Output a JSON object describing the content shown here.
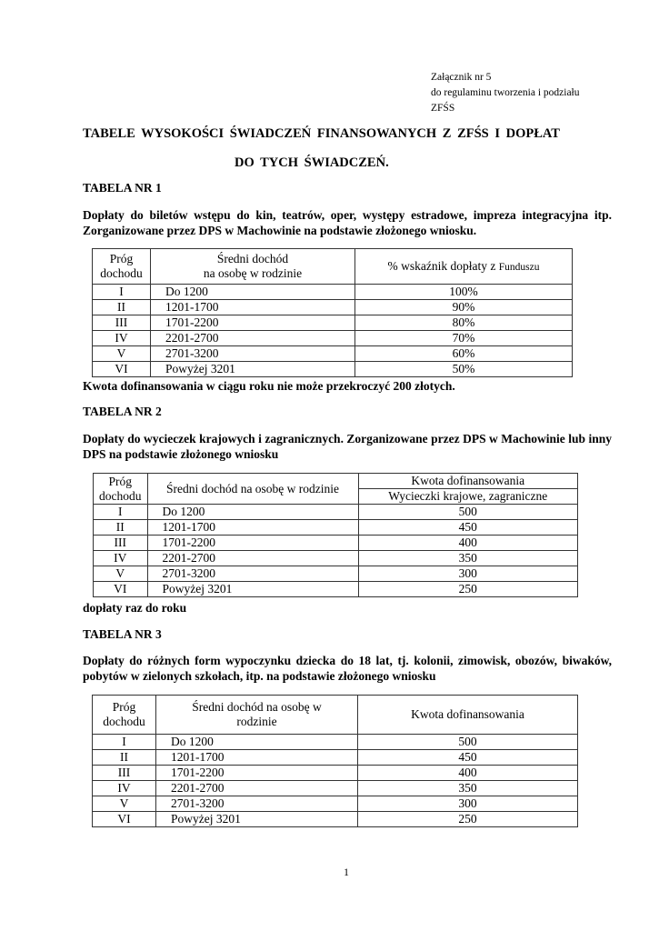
{
  "annex": [
    "Załącznik  nr 5",
    "do regulaminu tworzenia i podziału",
    "ZFŚS"
  ],
  "title": [
    "TABELE  WYSOKOŚCI  ŚWIADCZEŃ  FINANSOWANYCH  Z  ZFŚS  I  DOPŁAT",
    "DO TYCH ŚWIADCZEŃ."
  ],
  "table1": {
    "heading": "TABELA NR 1",
    "description": "Dopłaty do biletów wstępu do kin, teatrów, oper, występy estradowe, impreza integracyjna itp. Zorganizowane przez DPS w Machowinie na podstawie złożonego wniosku.",
    "headers": {
      "col1a": "Próg",
      "col1b": "dochodu",
      "col2a": "Średni dochód",
      "col2b": "na osobę w rodzinie",
      "col3a": "% wskaźnik dopłaty z ",
      "col3b": "Funduszu"
    },
    "rows": [
      [
        "I",
        "Do 1200",
        "100%"
      ],
      [
        "II",
        "1201-1700",
        "90%"
      ],
      [
        "III",
        "1701-2200",
        "80%"
      ],
      [
        "IV",
        "2201-2700",
        "70%"
      ],
      [
        "V",
        "2701-3200",
        "60%"
      ],
      [
        "VI",
        "Powyżej 3201",
        "50%"
      ]
    ],
    "note": "Kwota dofinansowania w ciągu roku nie może przekroczyć 200 złotych."
  },
  "table2": {
    "heading": "TABELA NR 2",
    "description": "Dopłaty do wycieczek krajowych i zagranicznych. Zorganizowane przez  DPS  w Machowinie lub inny DPS na podstawie złożonego wniosku",
    "headers": {
      "col1a": "Próg",
      "col1b": "dochodu",
      "col2": "Średni dochód na osobę w rodzinie",
      "col3a": "Kwota dofinansowania",
      "col3b": "Wycieczki krajowe, zagraniczne"
    },
    "rows": [
      [
        "I",
        "Do 1200",
        "500"
      ],
      [
        "II",
        "1201-1700",
        "450"
      ],
      [
        "III",
        "1701-2200",
        "400"
      ],
      [
        "IV",
        "2201-2700",
        "350"
      ],
      [
        "V",
        "2701-3200",
        "300"
      ],
      [
        "VI",
        "Powyżej 3201",
        "250"
      ]
    ],
    "note": "dopłaty raz do roku"
  },
  "table3": {
    "heading": "TABELA NR 3",
    "description": "Dopłaty do różnych form wypoczynku dziecka do 18 lat, tj. kolonii, zimowisk, obozów, biwaków, pobytów w zielonych szkołach,  itp. na podstawie złożonego wniosku",
    "headers": {
      "col1a": "Próg",
      "col1b": "dochodu",
      "col2a": "Średni dochód na osobę w",
      "col2b": "rodzinie",
      "col3": "Kwota dofinansowania"
    },
    "rows": [
      [
        "I",
        "Do 1200",
        "500"
      ],
      [
        "II",
        "1201-1700",
        "450"
      ],
      [
        "III",
        "1701-2200",
        "400"
      ],
      [
        "IV",
        "2201-2700",
        "350"
      ],
      [
        "V",
        "2701-3200",
        "300"
      ],
      [
        "VI",
        "Powyżej 3201",
        "250"
      ]
    ]
  },
  "page_number": "1"
}
